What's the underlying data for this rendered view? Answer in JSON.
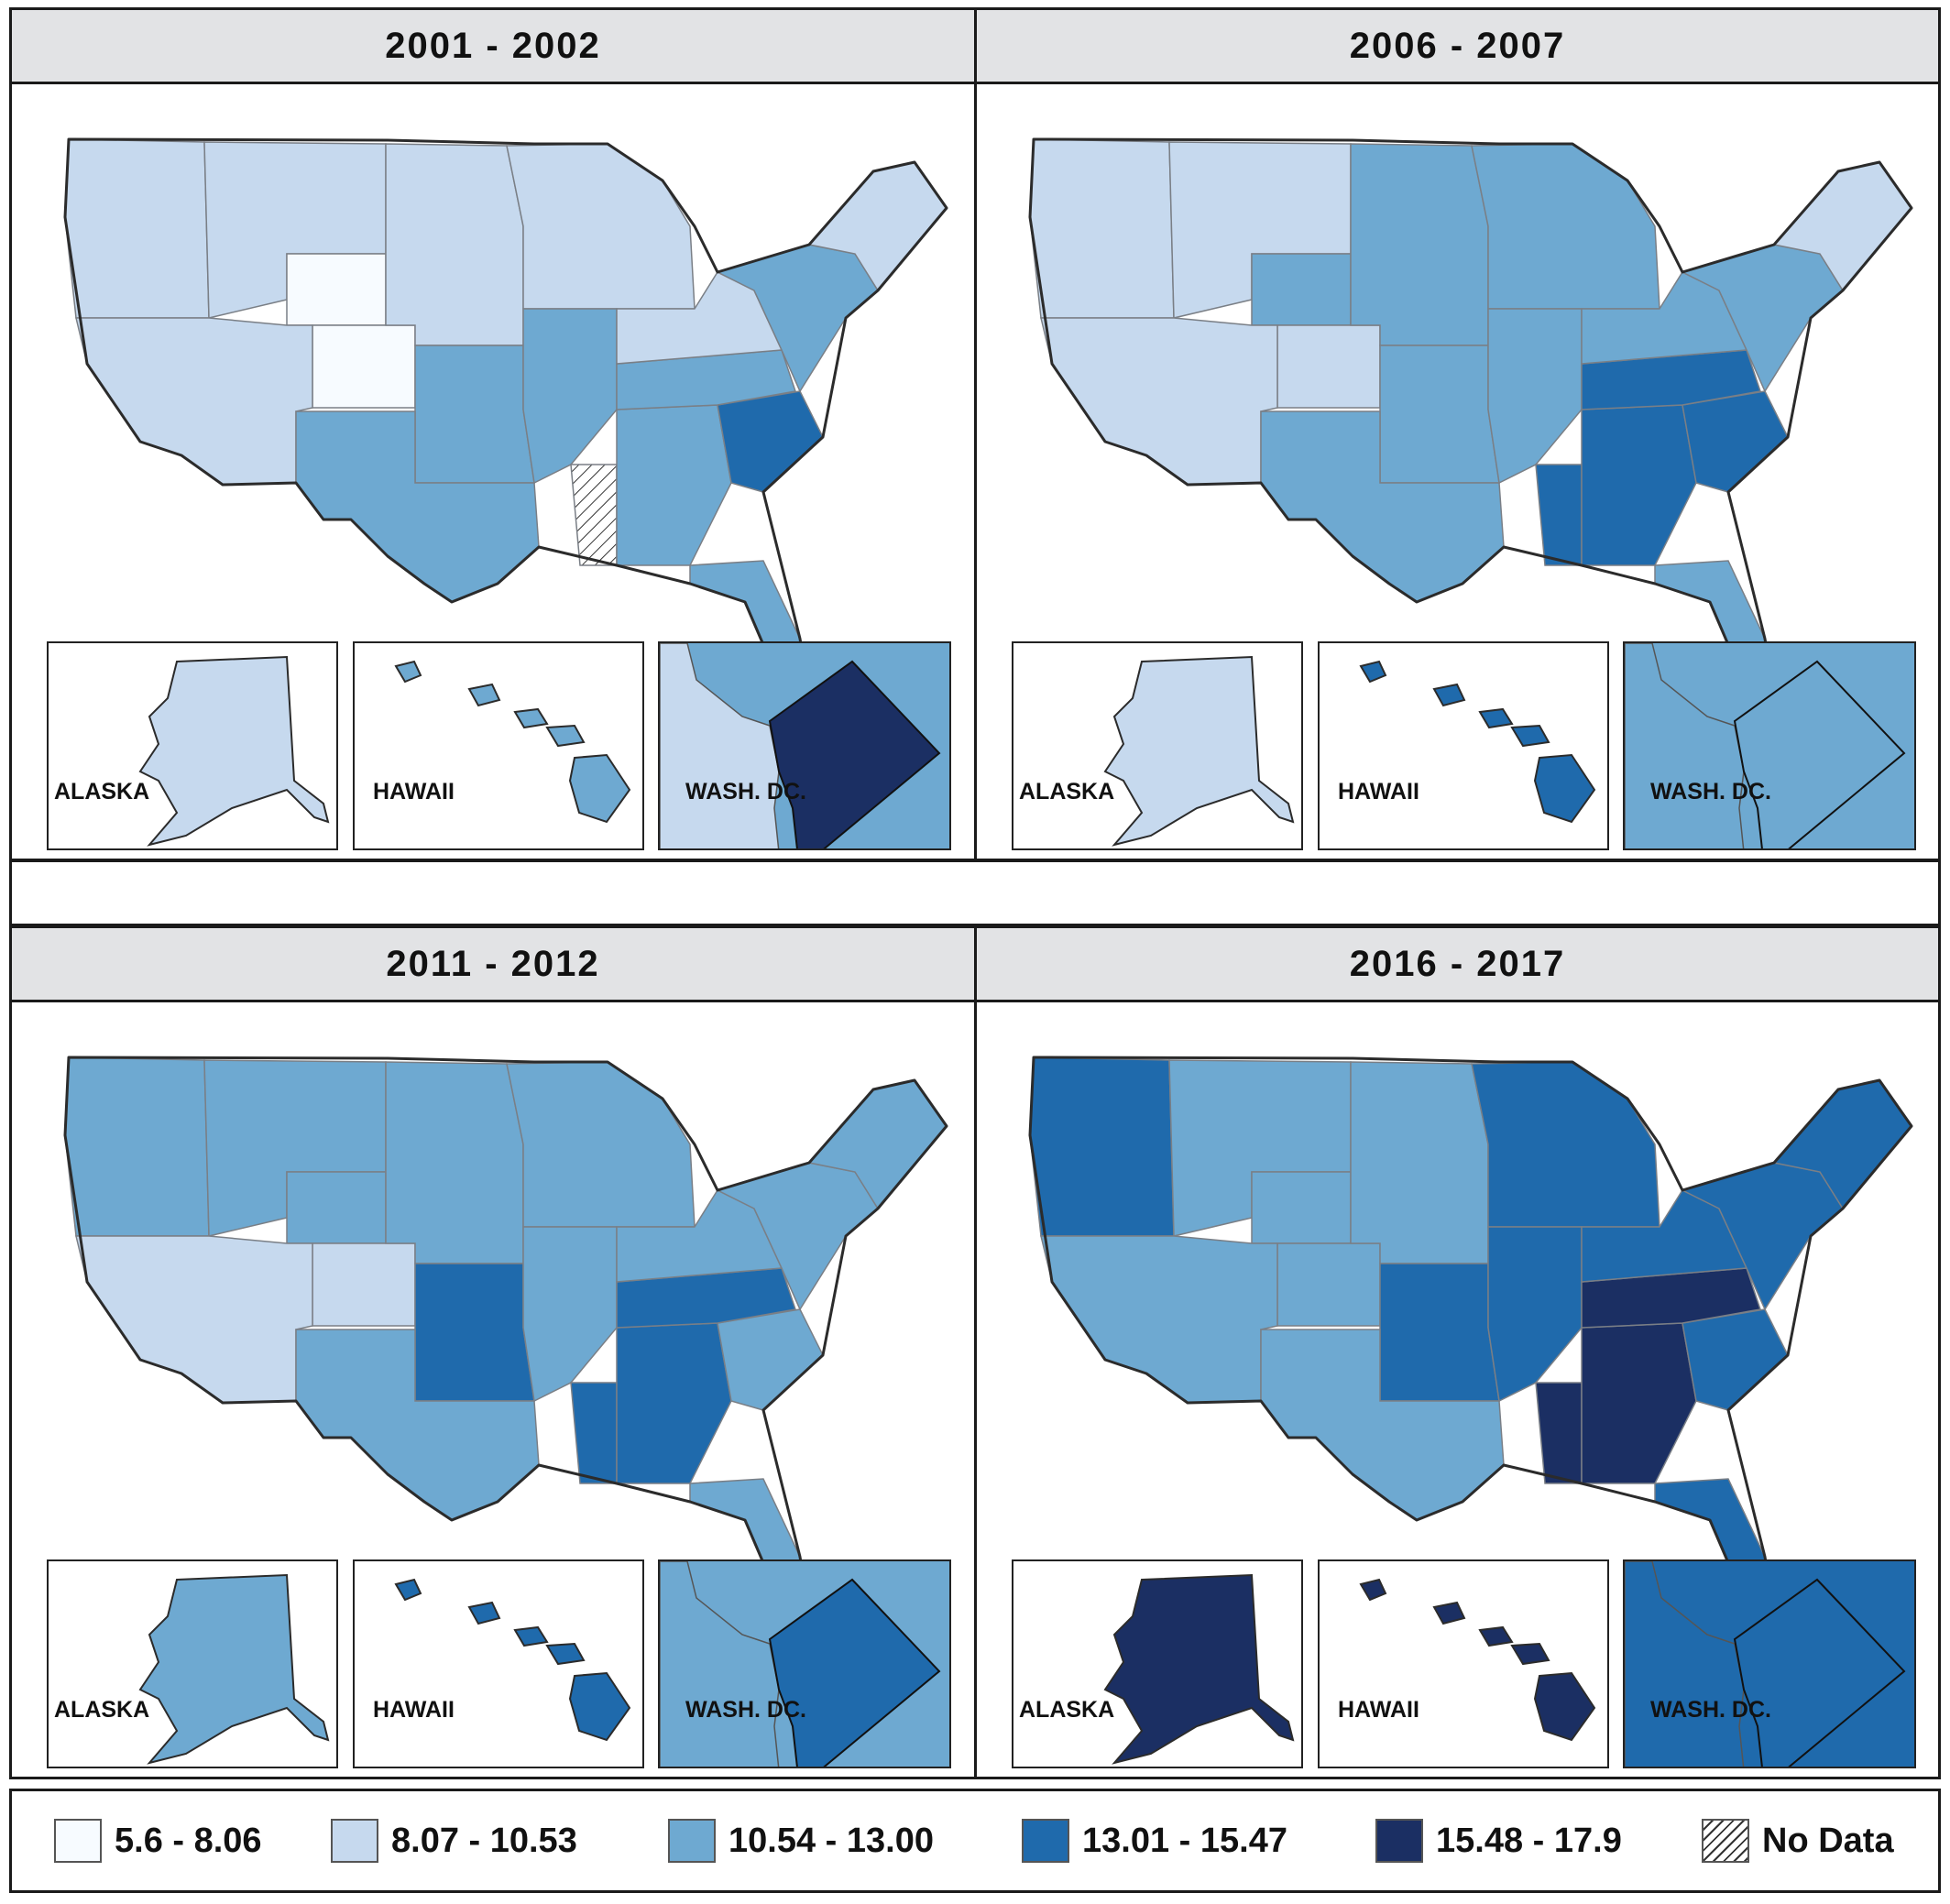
{
  "panels": [
    {
      "title": "2001 - 2002",
      "colors": {
        "nw": "#c6d9ee",
        "mtn": "#c6d9ee",
        "wy": "#f7fbff",
        "co": "#f7fbff",
        "sw": "#c6d9ee",
        "plains_n": "#c6d9ee",
        "plains_s": "#6ea9d1",
        "midw": "#c6d9ee",
        "mo": "#6ea9d1",
        "tx": "#6ea9d1",
        "south": "#6ea9d1",
        "ms": "nodata",
        "sc": "#1f6aac",
        "ky": "#6ea9d1",
        "oh": "#c6d9ee",
        "ne": "#6ea9d1",
        "maine": "#c6d9ee",
        "fl": "#6ea9d1"
      },
      "alaska": "#c6d9ee",
      "hawaii": "#6ea9d1",
      "dc_bg": "#6ea9d1",
      "dc": "#1b2f63",
      "dc_west": "#c6d9ee"
    },
    {
      "title": "2006 - 2007",
      "colors": {
        "nw": "#c6d9ee",
        "mtn": "#c6d9ee",
        "wy": "#6ea9d1",
        "co": "#c6d9ee",
        "sw": "#c6d9ee",
        "plains_n": "#6ea9d1",
        "plains_s": "#6ea9d1",
        "midw": "#6ea9d1",
        "mo": "#6ea9d1",
        "tx": "#6ea9d1",
        "south": "#1f6aac",
        "ms": "#1f6aac",
        "sc": "#1f6aac",
        "ky": "#1f6aac",
        "oh": "#6ea9d1",
        "ne": "#6ea9d1",
        "maine": "#c6d9ee",
        "fl": "#6ea9d1"
      },
      "alaska": "#c6d9ee",
      "hawaii": "#1f6aac",
      "dc_bg": "#6ea9d1",
      "dc": "#6ea9d1",
      "dc_west": "#6ea9d1"
    },
    {
      "title": "2011 - 2012",
      "colors": {
        "nw": "#6ea9d1",
        "mtn": "#6ea9d1",
        "wy": "#6ea9d1",
        "co": "#c6d9ee",
        "sw": "#c6d9ee",
        "plains_n": "#6ea9d1",
        "plains_s": "#1f6aac",
        "midw": "#6ea9d1",
        "mo": "#6ea9d1",
        "tx": "#6ea9d1",
        "south": "#1f6aac",
        "ms": "#1f6aac",
        "sc": "#6ea9d1",
        "ky": "#1f6aac",
        "oh": "#6ea9d1",
        "ne": "#6ea9d1",
        "maine": "#6ea9d1",
        "fl": "#6ea9d1"
      },
      "alaska": "#6ea9d1",
      "hawaii": "#1f6aac",
      "dc_bg": "#6ea9d1",
      "dc": "#1f6aac",
      "dc_west": "#6ea9d1"
    },
    {
      "title": "2016 - 2017",
      "colors": {
        "nw": "#1f6aac",
        "mtn": "#6ea9d1",
        "wy": "#6ea9d1",
        "co": "#6ea9d1",
        "sw": "#6ea9d1",
        "plains_n": "#6ea9d1",
        "plains_s": "#1f6aac",
        "midw": "#1f6aac",
        "mo": "#1f6aac",
        "tx": "#6ea9d1",
        "south": "#1b2f63",
        "ms": "#1b2f63",
        "sc": "#1f6aac",
        "ky": "#1b2f63",
        "oh": "#1f6aac",
        "ne": "#1f6aac",
        "maine": "#1f6aac",
        "fl": "#1f6aac"
      },
      "alaska": "#1b2f63",
      "hawaii": "#1b2f63",
      "dc_bg": "#1f6aac",
      "dc": "#1f6aac",
      "dc_west": "#1f6aac"
    }
  ],
  "inset_labels": {
    "alaska": "ALASKA",
    "hawaii": "HAWAII",
    "dc": "WASH. DC."
  },
  "legend": [
    {
      "label": "5.6 - 8.06",
      "color": "#f7fbff"
    },
    {
      "label": "8.07 - 10.53",
      "color": "#c6d9ee"
    },
    {
      "label": "10.54 - 13.00",
      "color": "#6ea9d1"
    },
    {
      "label": "13.01 - 15.47",
      "color": "#1f6aac"
    },
    {
      "label": "15.48 - 17.9",
      "color": "#1b2f63"
    },
    {
      "label": "No Data",
      "color": "nodata"
    }
  ]
}
